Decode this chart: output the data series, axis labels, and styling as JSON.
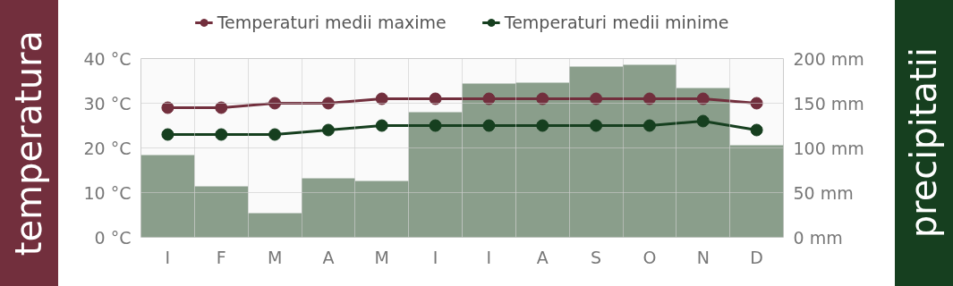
{
  "chart_data": {
    "type": "line",
    "categories": [
      "I",
      "F",
      "M",
      "A",
      "M",
      "I",
      "I",
      "A",
      "S",
      "O",
      "N",
      "D"
    ],
    "ylabel": "temperatura",
    "y2label": "precipitatii",
    "ylim": [
      0,
      40
    ],
    "yticks": [
      {
        "value": 0,
        "label": "0 °C"
      },
      {
        "value": 10,
        "label": "10 °C"
      },
      {
        "value": 20,
        "label": "20 °C"
      },
      {
        "value": 30,
        "label": "30 °C"
      },
      {
        "value": 40,
        "label": "40 °C"
      }
    ],
    "y2lim": [
      0,
      200
    ],
    "y2ticks": [
      {
        "value": 0,
        "label": "0 mm"
      },
      {
        "value": 50,
        "label": "50 mm"
      },
      {
        "value": 100,
        "label": "100 mm"
      },
      {
        "value": 150,
        "label": "150 mm"
      },
      {
        "value": 200,
        "label": "200 mm"
      }
    ],
    "series": [
      {
        "type": "bar",
        "axis": "y2",
        "color": "#8a9e8b",
        "values": [
          92,
          57,
          27,
          66,
          63,
          140,
          172,
          173,
          191,
          193,
          167,
          103
        ]
      },
      {
        "name": "Temperaturi medii maxime",
        "color": "#722f3d",
        "values": [
          29,
          29,
          30,
          30,
          31,
          31,
          31,
          31,
          31,
          31,
          31,
          30
        ]
      },
      {
        "name": "Temperaturi medii minime",
        "color": "#163f1f",
        "values": [
          23,
          23,
          23,
          24,
          25,
          25,
          25,
          25,
          25,
          25,
          26,
          24
        ]
      }
    ],
    "marker": "circle",
    "grid": true,
    "legend": "top"
  }
}
